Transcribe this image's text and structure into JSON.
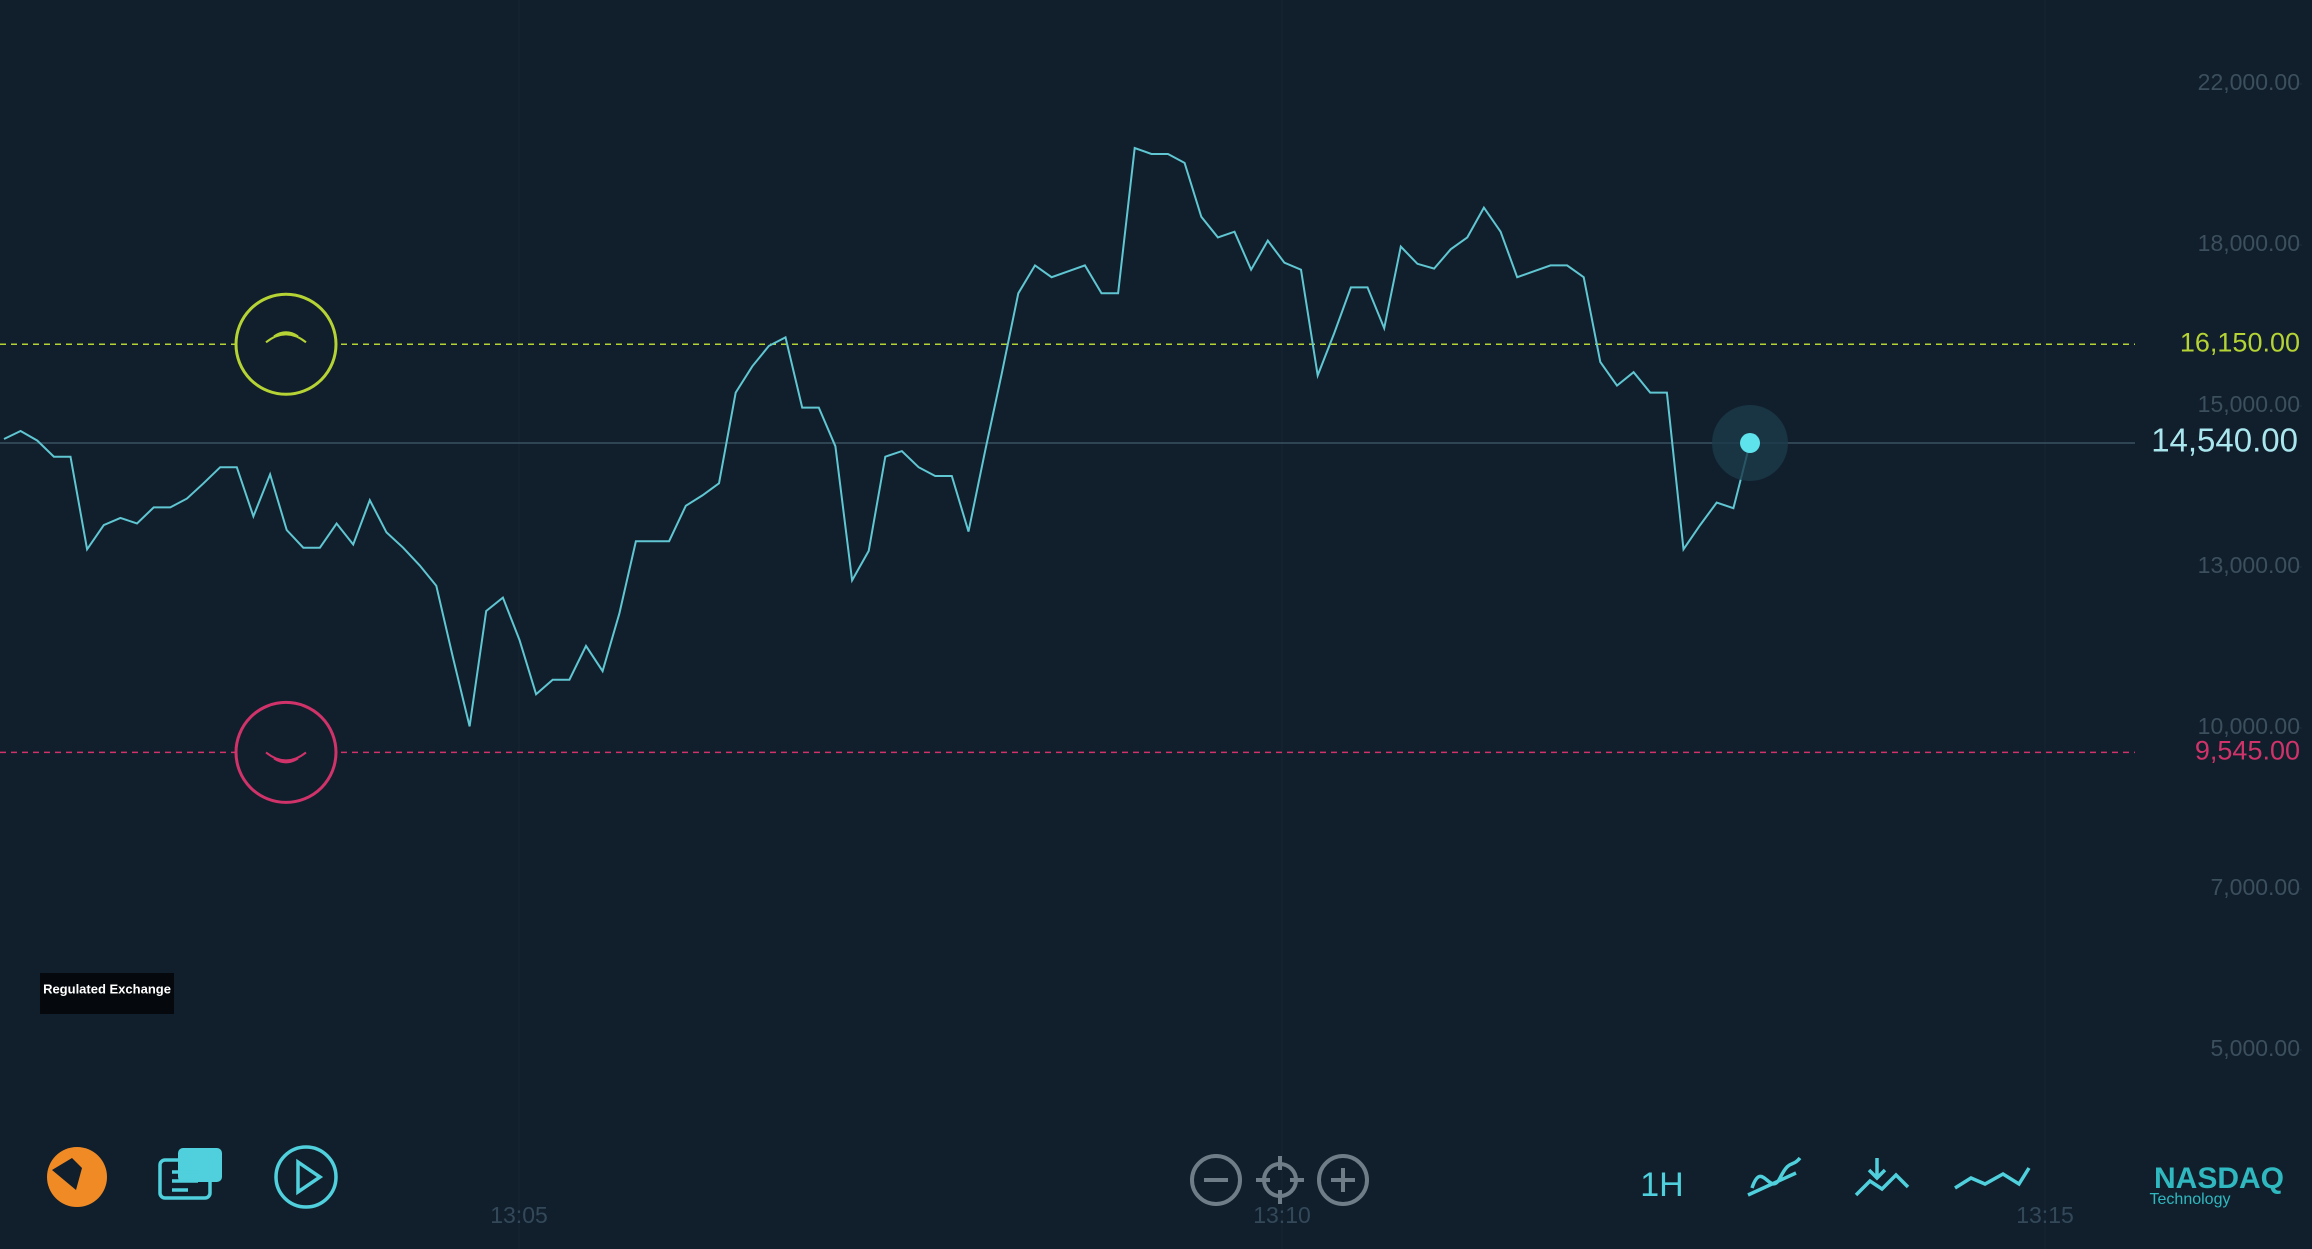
{
  "chart_data": {
    "type": "line",
    "yticks": [
      {
        "value": 22000,
        "label": "22,000.00"
      },
      {
        "value": 18000,
        "label": "18,000.00"
      },
      {
        "value": 15000,
        "label": "15,000.00"
      },
      {
        "value": 13000,
        "label": "13,000.00"
      },
      {
        "value": 10000,
        "label": "10,000.00"
      },
      {
        "value": 7000,
        "label": "7,000.00"
      },
      {
        "value": 5000,
        "label": "5,000.00"
      }
    ],
    "time_labels": [
      "13:05",
      "13:10",
      "13:15"
    ],
    "series": [
      {
        "color": "#5fc6d2",
        "values": [
          14590,
          14690,
          14570,
          14370,
          14370,
          13220,
          13520,
          13610,
          13540,
          13740,
          13740,
          13850,
          14040,
          14240,
          14240,
          13630,
          14150,
          13460,
          13240,
          13240,
          13540,
          13280,
          13830,
          13430,
          13240,
          13020,
          12650,
          11310,
          10030,
          12180,
          12430,
          11640,
          10630,
          10900,
          10900,
          11530,
          11060,
          12130,
          13320,
          13320,
          13320,
          13760,
          13890,
          14040,
          15250,
          15740,
          16120,
          16280,
          14980,
          14980,
          14500,
          12750,
          13200,
          14370,
          14440,
          14240,
          14130,
          14130,
          13440,
          14440,
          15600,
          17100,
          17620,
          17400,
          17510,
          17620,
          17100,
          17100,
          20410,
          20260,
          20260,
          20040,
          18700,
          18190,
          18330,
          17540,
          18110,
          17670,
          17540,
          15570,
          16360,
          17210,
          17210,
          16450,
          17970,
          17650,
          17560,
          17920,
          18190,
          18930,
          18330,
          17400,
          17510,
          17620,
          17620,
          17400,
          15820,
          15380,
          15630,
          15250,
          15250,
          13220,
          13520,
          13800,
          13730,
          14540
        ]
      }
    ],
    "levels": [
      {
        "value": 16150,
        "label": "16,150.00",
        "color": "#b5d334"
      },
      {
        "value": 9545,
        "label": "9,545.00",
        "color": "#d0336a"
      }
    ],
    "last_price": {
      "value": 14540,
      "label": "14,540.00"
    }
  },
  "ui": {
    "badge": "Regulated Exchange",
    "timeframe": "1H",
    "logo": "NASDAQ",
    "logo_sub": "Technology"
  }
}
